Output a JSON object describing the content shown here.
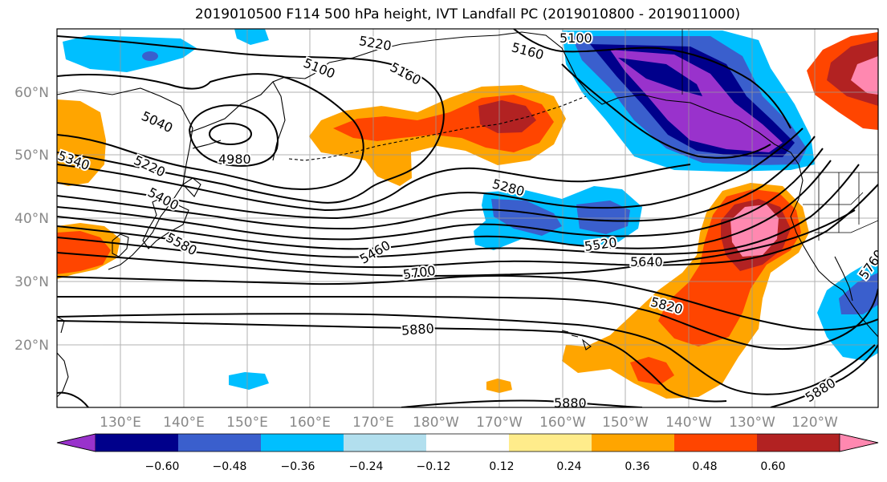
{
  "title": "2019010500 F114 500 hPa height, IVT Landfall PC (2019010800 - 2019011000)",
  "map": {
    "lat_labels": [
      "60°N",
      "50°N",
      "40°N",
      "30°N",
      "20°N"
    ],
    "lon_labels": [
      "130°E",
      "140°E",
      "150°E",
      "160°E",
      "170°E",
      "180°W",
      "170°W",
      "160°W",
      "150°W",
      "140°W",
      "130°W",
      "120°W"
    ],
    "height_contour_labels": [
      "5220",
      "5100",
      "5160",
      "5100",
      "5160",
      "5040",
      "4980",
      "5340",
      "5220",
      "5400",
      "5580",
      "5280",
      "5460",
      "5520",
      "5640",
      "5700",
      "5760",
      "5820",
      "5880",
      "5880",
      "5880"
    ]
  },
  "colorbar": {
    "colors": [
      "#9932cc",
      "#00008b",
      "#3a5fcd",
      "#00bfff",
      "#b2dfee",
      "#ffffff",
      "#ffec8b",
      "#ffa500",
      "#ff4500",
      "#b22222",
      "#ff88b0"
    ],
    "tick_labels": [
      "−0.60",
      "−0.48",
      "−0.36",
      "−0.24",
      "−0.12",
      "0.12",
      "0.24",
      "0.36",
      "0.48",
      "0.60"
    ]
  }
}
